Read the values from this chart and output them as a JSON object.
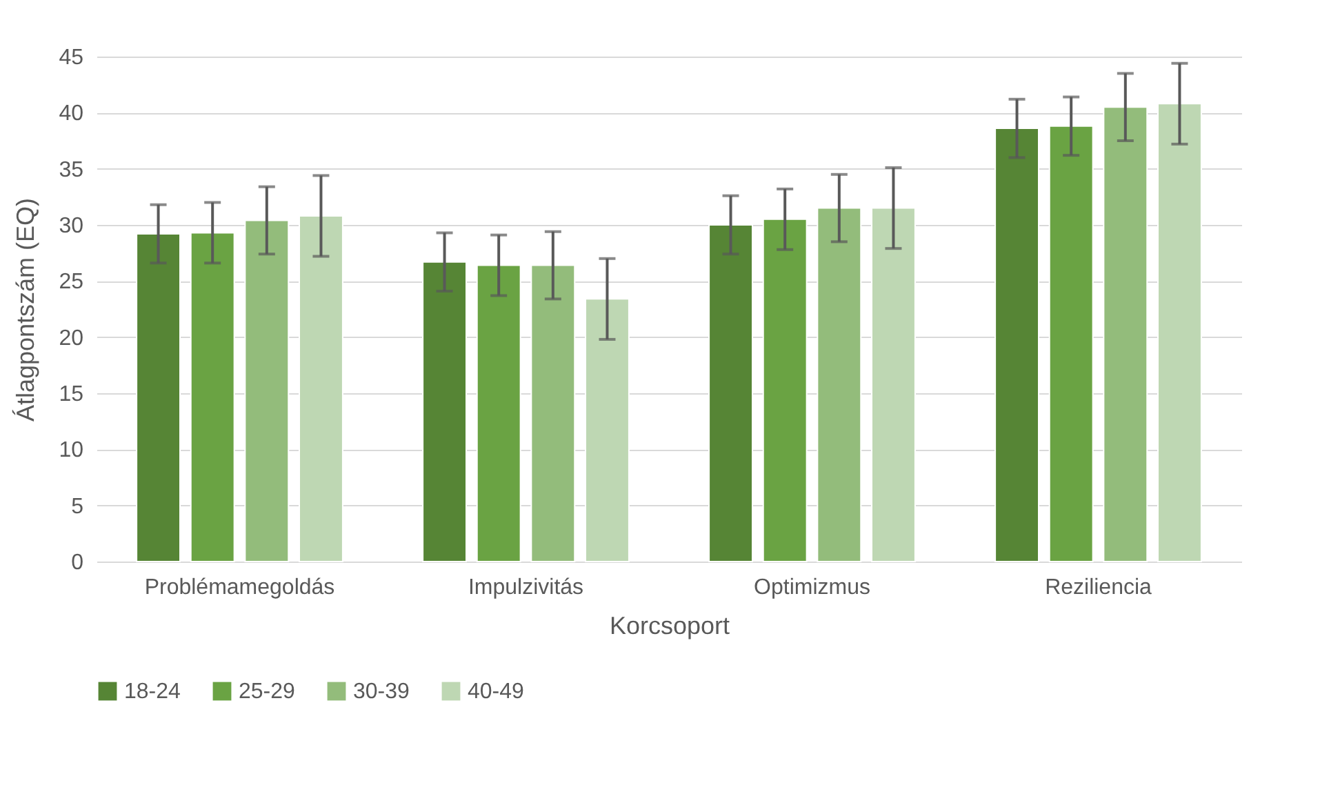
{
  "chart_data": {
    "type": "bar",
    "xlabel": "Korcsoport",
    "ylabel": "Átlagpontszám (EQ)",
    "categories": [
      "Problémamegoldás",
      "Impulzivitás",
      "Optimizmus",
      "Reziliencia"
    ],
    "series": [
      {
        "name": "18-24",
        "color": "#568535",
        "values": [
          29.2,
          26.7,
          30.0,
          38.6
        ],
        "errors": [
          2.6,
          2.6,
          2.6,
          2.6
        ]
      },
      {
        "name": "25-29",
        "color": "#6aa343",
        "values": [
          29.3,
          26.4,
          30.5,
          38.8
        ],
        "errors": [
          2.7,
          2.7,
          2.7,
          2.6
        ]
      },
      {
        "name": "30-39",
        "color": "#93bc7b",
        "values": [
          30.4,
          26.4,
          31.5,
          40.5
        ],
        "errors": [
          3.0,
          3.0,
          3.0,
          3.0
        ]
      },
      {
        "name": "40-49",
        "color": "#bed7b3",
        "values": [
          30.8,
          23.4,
          31.5,
          40.8
        ],
        "errors": [
          3.6,
          3.6,
          3.6,
          3.6
        ]
      }
    ],
    "ylim": [
      0,
      45
    ],
    "yticks": [
      0,
      5,
      10,
      15,
      20,
      25,
      30,
      35,
      40,
      45
    ],
    "grid": "y",
    "legend": "bottom"
  }
}
